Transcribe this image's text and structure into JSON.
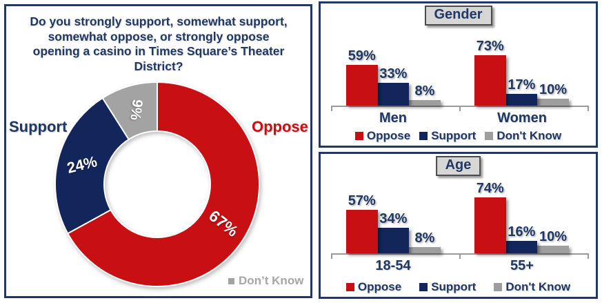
{
  "colors": {
    "red": "#C81014",
    "navy": "#13265B",
    "gray": "#9E9E9E",
    "donut_gray": "#A3A3A3",
    "text_navy": "#1F3864",
    "text_gray": "#A6A6A6",
    "panel_border": "#1F3864",
    "titlebox_bg": "#D6D6D6",
    "titlebox_border": "#4A4A4A",
    "axis_gray": "#9A9A9A"
  },
  "left_panel": {
    "question": "Do you strongly support, somewhat support, somewhat oppose, or strongly oppose opening a casino in Times Square’s Theater District?",
    "callout_support": "Support",
    "callout_oppose": "Oppose",
    "callout_dont_know": "Don’t Know"
  },
  "chart_data": [
    {
      "type": "pie",
      "subtype": "donut",
      "title": "Do you strongly support, somewhat support, somewhat oppose, or strongly oppose opening a casino in Times Square’s Theater District?",
      "start_angle_deg": 0,
      "direction": "clockwise",
      "slices": [
        {
          "name": "Oppose",
          "value": 67,
          "label": "67%",
          "color": "#C81014"
        },
        {
          "name": "Support",
          "value": 24,
          "label": "24%",
          "color": "#13265B"
        },
        {
          "name": "Don't Know",
          "value": 9,
          "label": "9%",
          "color": "#A3A3A3"
        }
      ]
    },
    {
      "type": "bar",
      "title": "Gender",
      "categories": [
        "Men",
        "Women"
      ],
      "series": [
        {
          "name": "Oppose",
          "color_key": "red",
          "values": [
            59,
            73
          ]
        },
        {
          "name": "Support",
          "color_key": "navy",
          "values": [
            33,
            17
          ]
        },
        {
          "name": "Don't Know",
          "color_key": "gray",
          "values": [
            8,
            10
          ]
        }
      ],
      "value_labels": [
        [
          "59%",
          "33%",
          "8%"
        ],
        [
          "73%",
          "17%",
          "10%"
        ]
      ],
      "legend": [
        "Oppose",
        "Support",
        "Don't Know"
      ],
      "ylim": [
        0,
        100
      ],
      "grid": false,
      "legend_position": "bottom"
    },
    {
      "type": "bar",
      "title": "Age",
      "categories": [
        "18-54",
        "55+"
      ],
      "series": [
        {
          "name": "Oppose",
          "color_key": "red",
          "values": [
            57,
            74
          ]
        },
        {
          "name": "Support",
          "color_key": "navy",
          "values": [
            34,
            16
          ]
        },
        {
          "name": "Don't Know",
          "color_key": "gray",
          "values": [
            8,
            10
          ]
        }
      ],
      "value_labels": [
        [
          "57%",
          "34%",
          "8%"
        ],
        [
          "74%",
          "16%",
          "10%"
        ]
      ],
      "legend": [
        "Oppose",
        "Support",
        "Don't Know"
      ],
      "ylim": [
        0,
        100
      ],
      "grid": false,
      "legend_position": "bottom"
    }
  ]
}
